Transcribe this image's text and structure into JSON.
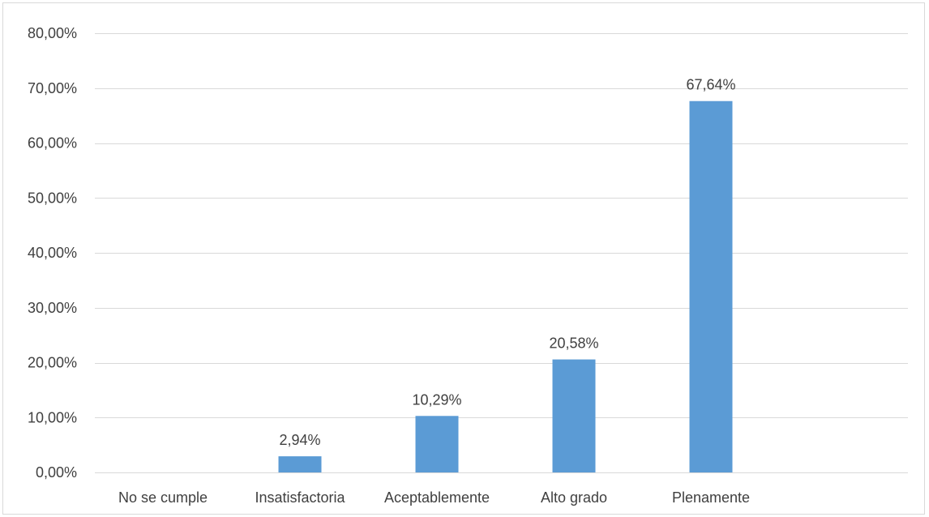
{
  "chart_data": {
    "type": "bar",
    "categories": [
      "No se cumple",
      "Insatisfactoria",
      "Aceptablemente",
      "Alto grado",
      "Plenamente"
    ],
    "values": [
      0,
      2.94,
      10.29,
      20.58,
      67.64
    ],
    "data_labels": [
      "",
      "2,94%",
      "10,29%",
      "20,58%",
      "67,64%"
    ],
    "y_tick_values": [
      0,
      10,
      20,
      30,
      40,
      50,
      60,
      70,
      80
    ],
    "y_tick_labels": [
      "0,00%",
      "10,00%",
      "20,00%",
      "30,00%",
      "40,00%",
      "50,00%",
      "60,00%",
      "70,00%",
      "80,00%"
    ],
    "ylim": [
      0,
      80
    ],
    "title": "",
    "xlabel": "",
    "ylabel": "",
    "grid": true,
    "legend": "none",
    "bar_color": "#5b9bd5",
    "grid_color": "#d9d9d9"
  }
}
